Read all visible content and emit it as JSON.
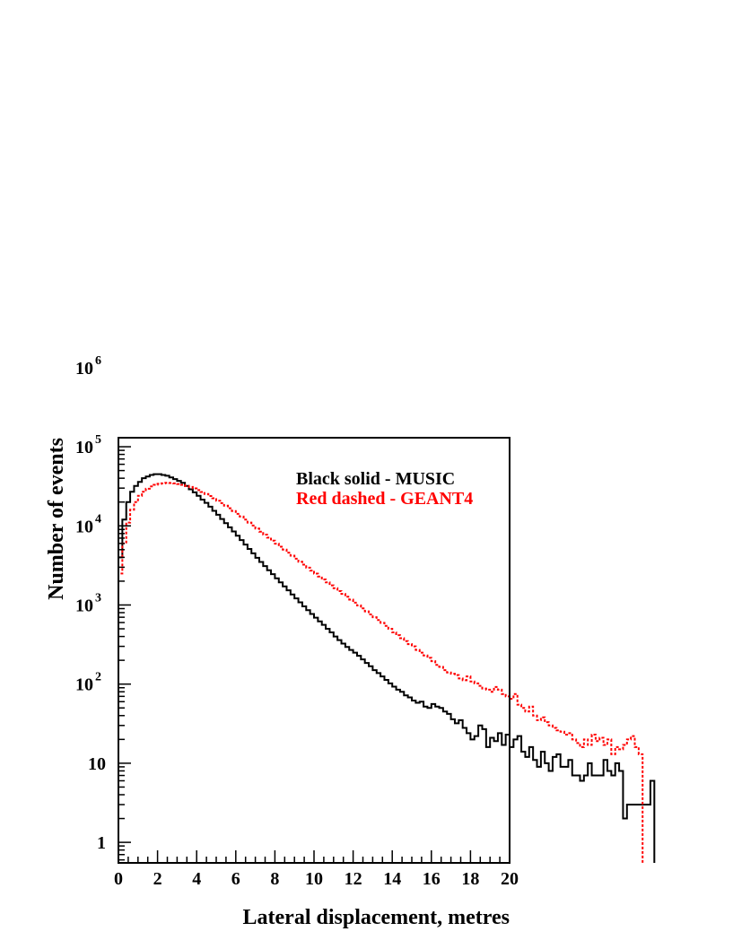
{
  "chart_data": {
    "type": "line",
    "title": "",
    "xlabel": "Lateral displacement, metres",
    "ylabel": "Number of events",
    "xlim": [
      0,
      20
    ],
    "ylim": [
      0.55,
      130000
    ],
    "yscale": "log",
    "grid": false,
    "legend_placement": "top-right",
    "x_ticks": [
      "0",
      "2",
      "4",
      "6",
      "8",
      "10",
      "12",
      "14",
      "16",
      "18",
      "20"
    ],
    "y_ticks": [
      {
        "value": 1,
        "base": "1",
        "exp": ""
      },
      {
        "value": 10,
        "base": "10",
        "exp": ""
      },
      {
        "value": 100,
        "base": "10",
        "exp": "2"
      },
      {
        "value": 1000,
        "base": "10",
        "exp": "3"
      },
      {
        "value": 10000,
        "base": "10",
        "exp": "4"
      },
      {
        "value": 100000,
        "base": "10",
        "exp": "5"
      },
      {
        "value": 1000000,
        "base": "10",
        "exp": "6"
      }
    ],
    "bin_width": 0.2,
    "series": [
      {
        "name": "Black solid - MUSIC",
        "color": "#000000",
        "dash": "solid",
        "values": [
          4000,
          12000,
          20000,
          27000,
          32000,
          36000,
          40000,
          42000,
          44000,
          45000,
          45000,
          44000,
          43000,
          41000,
          39000,
          37000,
          35000,
          32000,
          29000,
          26500,
          24000,
          21500,
          19500,
          17500,
          15500,
          13800,
          12200,
          10800,
          9600,
          8500,
          7500,
          6600,
          5800,
          5100,
          4500,
          3950,
          3500,
          3100,
          2750,
          2450,
          2170,
          1930,
          1720,
          1530,
          1360,
          1210,
          1080,
          960,
          860,
          770,
          690,
          620,
          560,
          500,
          450,
          400,
          360,
          325,
          295,
          270,
          250,
          228,
          205,
          185,
          168,
          150,
          138,
          125,
          113,
          102,
          93,
          85,
          80,
          72,
          68,
          62,
          58,
          60,
          52,
          50,
          56,
          52,
          50,
          45,
          42,
          36,
          32,
          35,
          28,
          24,
          20,
          22,
          30,
          27,
          16,
          21,
          19,
          24,
          17,
          23,
          16,
          20,
          22,
          14,
          12,
          16,
          11,
          9,
          14,
          10,
          8,
          12,
          13,
          9,
          9,
          11,
          7,
          7,
          6,
          7,
          10,
          7,
          7,
          7,
          11,
          8,
          7,
          10,
          8,
          2,
          3,
          3,
          3,
          3,
          3,
          3,
          6
        ]
      },
      {
        "name": "Red dashed - GEANT4",
        "color": "#ff0000",
        "dash": "dashed",
        "values": [
          2500,
          6000,
          11000,
          16000,
          20000,
          24000,
          27000,
          29500,
          31500,
          33000,
          34000,
          34500,
          35000,
          34800,
          34500,
          33800,
          33000,
          32000,
          31000,
          29700,
          28300,
          26800,
          25300,
          23800,
          22300,
          20800,
          19400,
          18000,
          16700,
          15400,
          14200,
          13100,
          12000,
          11000,
          10100,
          9250,
          8450,
          7750,
          7100,
          6500,
          5950,
          5450,
          5000,
          4580,
          4200,
          3850,
          3520,
          3230,
          2960,
          2720,
          2490,
          2290,
          2100,
          1930,
          1770,
          1630,
          1500,
          1380,
          1270,
          1170,
          1070,
          985,
          905,
          830,
          760,
          700,
          645,
          595,
          545,
          500,
          450,
          415,
          380,
          350,
          320,
          300,
          270,
          250,
          230,
          215,
          195,
          175,
          165,
          150,
          140,
          135,
          130,
          118,
          112,
          125,
          108,
          102,
          95,
          88,
          85,
          80,
          92,
          85,
          75,
          70,
          65,
          75,
          55,
          50,
          45,
          52,
          40,
          35,
          38,
          33,
          30,
          28,
          26,
          25,
          23,
          24,
          20,
          18,
          16,
          20,
          17,
          23,
          19,
          21,
          17,
          20,
          13,
          16,
          15,
          17,
          20,
          22,
          16,
          13
        ]
      }
    ]
  }
}
